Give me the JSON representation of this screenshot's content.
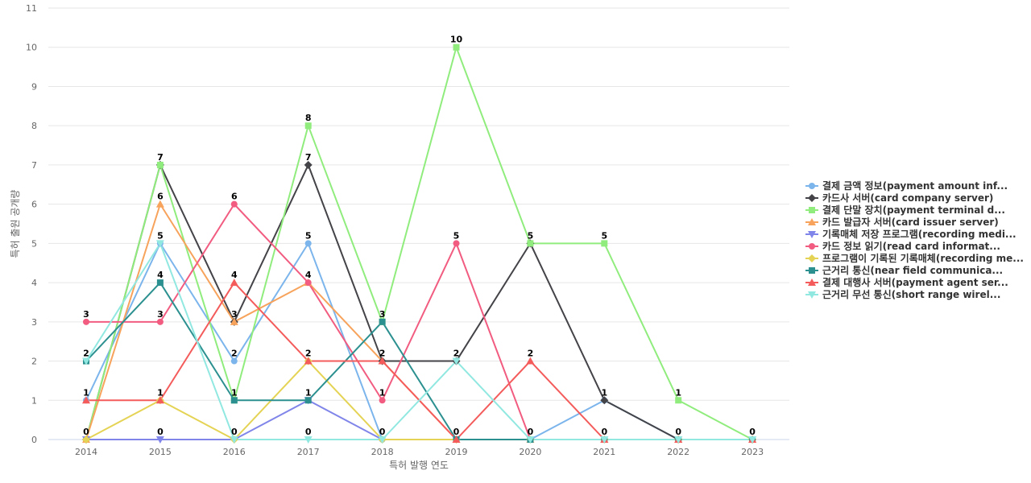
{
  "chart_data": {
    "type": "line",
    "xlabel": "특허 발행 연도",
    "ylabel": "특허 출원 공개량",
    "x": [
      "2014",
      "2015",
      "2016",
      "2017",
      "2018",
      "2019",
      "2020",
      "2021",
      "2022",
      "2023"
    ],
    "ylim": [
      0,
      11
    ],
    "yticks": [
      0,
      1,
      2,
      3,
      4,
      5,
      6,
      7,
      8,
      9,
      10,
      11
    ],
    "grid": true,
    "legend_position": "right",
    "series": [
      {
        "name": "결제 금액 정보(payment amount inf...",
        "color": "#7cb5ec",
        "marker": "circle",
        "points": [
          [
            0,
            1
          ],
          [
            1,
            5
          ],
          [
            2,
            2
          ],
          [
            3,
            5
          ],
          [
            4,
            0
          ],
          [
            6,
            0
          ],
          [
            7,
            1
          ],
          [
            8,
            0
          ],
          [
            9,
            0
          ]
        ]
      },
      {
        "name": "카드사 서버(card company server)",
        "color": "#434348",
        "marker": "diamond",
        "points": [
          [
            0,
            0
          ],
          [
            1,
            7
          ],
          [
            2,
            3
          ],
          [
            3,
            7
          ],
          [
            4,
            2
          ],
          [
            5,
            2
          ],
          [
            6,
            5
          ],
          [
            7,
            1
          ],
          [
            8,
            0
          ],
          [
            9,
            0
          ]
        ]
      },
      {
        "name": "결제 단말 장치(payment terminal d...",
        "color": "#90ed7d",
        "marker": "square",
        "points": [
          [
            0,
            0
          ],
          [
            1,
            7
          ],
          [
            2,
            1
          ],
          [
            3,
            8
          ],
          [
            4,
            3
          ],
          [
            5,
            10
          ],
          [
            6,
            5
          ],
          [
            7,
            5
          ],
          [
            8,
            1
          ],
          [
            9,
            0
          ]
        ]
      },
      {
        "name": "카드 발급자 서버(card issuer server)",
        "color": "#f7a35c",
        "marker": "triangle",
        "points": [
          [
            0,
            0
          ],
          [
            1,
            6
          ],
          [
            2,
            3
          ],
          [
            3,
            4
          ],
          [
            4,
            2
          ],
          [
            5,
            0
          ],
          [
            6,
            0
          ],
          [
            7,
            0
          ],
          [
            8,
            0
          ],
          [
            9,
            0
          ]
        ]
      },
      {
        "name": "기록매체 저장 프로그램(recording medi...",
        "color": "#8085e9",
        "marker": "triangle-down",
        "points": [
          [
            0,
            0
          ],
          [
            1,
            0
          ],
          [
            2,
            0
          ],
          [
            3,
            1
          ],
          [
            4,
            0
          ],
          [
            5,
            0
          ],
          [
            6,
            0
          ],
          [
            7,
            0
          ],
          [
            8,
            0
          ],
          [
            9,
            0
          ]
        ]
      },
      {
        "name": "카드 정보 읽기(read card informat...",
        "color": "#f15c80",
        "marker": "circle",
        "points": [
          [
            0,
            3
          ],
          [
            1,
            3
          ],
          [
            2,
            6
          ],
          [
            3,
            4
          ],
          [
            4,
            1
          ],
          [
            5,
            5
          ],
          [
            6,
            0
          ],
          [
            7,
            0
          ],
          [
            8,
            0
          ],
          [
            9,
            0
          ]
        ]
      },
      {
        "name": "프로그램이 기록된 기록매체(recording me...",
        "color": "#e4d354",
        "marker": "diamond",
        "points": [
          [
            0,
            0
          ],
          [
            1,
            1
          ],
          [
            2,
            0
          ],
          [
            3,
            2
          ],
          [
            4,
            0
          ],
          [
            5,
            0
          ],
          [
            6,
            0
          ],
          [
            7,
            0
          ],
          [
            8,
            0
          ],
          [
            9,
            0
          ]
        ]
      },
      {
        "name": "근거리 통신(near field communica...",
        "color": "#2b908f",
        "marker": "square",
        "points": [
          [
            0,
            2
          ],
          [
            1,
            4
          ],
          [
            2,
            1
          ],
          [
            3,
            1
          ],
          [
            4,
            3
          ],
          [
            5,
            0
          ],
          [
            6,
            0
          ],
          [
            7,
            0
          ],
          [
            8,
            0
          ],
          [
            9,
            0
          ]
        ]
      },
      {
        "name": "결제 대행사 서버(payment agent ser...",
        "color": "#f45b5b",
        "marker": "triangle",
        "points": [
          [
            0,
            1
          ],
          [
            1,
            1
          ],
          [
            2,
            4
          ],
          [
            3,
            2
          ],
          [
            4,
            2
          ],
          [
            5,
            0
          ],
          [
            6,
            2
          ],
          [
            7,
            0
          ],
          [
            8,
            0
          ],
          [
            9,
            0
          ]
        ]
      },
      {
        "name": "근거리 무선 통신(short range wirel...",
        "color": "#91e8e1",
        "marker": "triangle-down",
        "points": [
          [
            0,
            2
          ],
          [
            1,
            5
          ],
          [
            2,
            0
          ],
          [
            3,
            0
          ],
          [
            4,
            0
          ],
          [
            5,
            2
          ],
          [
            6,
            0
          ],
          [
            7,
            0
          ],
          [
            8,
            0
          ],
          [
            9,
            0
          ]
        ]
      }
    ],
    "data_labels": [
      {
        "x": 0,
        "y": 3,
        "text": "3"
      },
      {
        "x": 0,
        "y": 2,
        "text": "2"
      },
      {
        "x": 0,
        "y": 1,
        "text": "1"
      },
      {
        "x": 0,
        "y": 0,
        "text": "0"
      },
      {
        "x": 1,
        "y": 7,
        "text": "7"
      },
      {
        "x": 1,
        "y": 6,
        "text": "6"
      },
      {
        "x": 1,
        "y": 5,
        "text": "5"
      },
      {
        "x": 1,
        "y": 4,
        "text": "4"
      },
      {
        "x": 1,
        "y": 3,
        "text": "3"
      },
      {
        "x": 1,
        "y": 1,
        "text": "1"
      },
      {
        "x": 1,
        "y": 0,
        "text": "0"
      },
      {
        "x": 2,
        "y": 6,
        "text": "6"
      },
      {
        "x": 2,
        "y": 4,
        "text": "4"
      },
      {
        "x": 2,
        "y": 3,
        "text": "3"
      },
      {
        "x": 2,
        "y": 2,
        "text": "2"
      },
      {
        "x": 2,
        "y": 1,
        "text": "1"
      },
      {
        "x": 2,
        "y": 0,
        "text": "0"
      },
      {
        "x": 3,
        "y": 8,
        "text": "8"
      },
      {
        "x": 3,
        "y": 7,
        "text": "7"
      },
      {
        "x": 3,
        "y": 5,
        "text": "5"
      },
      {
        "x": 3,
        "y": 4,
        "text": "4"
      },
      {
        "x": 3,
        "y": 2,
        "text": "2"
      },
      {
        "x": 3,
        "y": 1,
        "text": "1"
      },
      {
        "x": 3,
        "y": 0,
        "text": "0"
      },
      {
        "x": 4,
        "y": 3,
        "text": "3"
      },
      {
        "x": 4,
        "y": 2,
        "text": "2"
      },
      {
        "x": 4,
        "y": 1,
        "text": "1"
      },
      {
        "x": 4,
        "y": 0,
        "text": "0"
      },
      {
        "x": 5,
        "y": 10,
        "text": "10"
      },
      {
        "x": 5,
        "y": 5,
        "text": "5"
      },
      {
        "x": 5,
        "y": 2,
        "text": "2"
      },
      {
        "x": 5,
        "y": 0,
        "text": "0"
      },
      {
        "x": 6,
        "y": 5,
        "text": "5"
      },
      {
        "x": 6,
        "y": 2,
        "text": "2"
      },
      {
        "x": 6,
        "y": 0,
        "text": "0"
      },
      {
        "x": 7,
        "y": 5,
        "text": "5"
      },
      {
        "x": 7,
        "y": 1,
        "text": "1"
      },
      {
        "x": 7,
        "y": 0,
        "text": "0"
      },
      {
        "x": 8,
        "y": 1,
        "text": "1"
      },
      {
        "x": 8,
        "y": 0,
        "text": "0"
      },
      {
        "x": 9,
        "y": 0,
        "text": "0"
      }
    ]
  }
}
